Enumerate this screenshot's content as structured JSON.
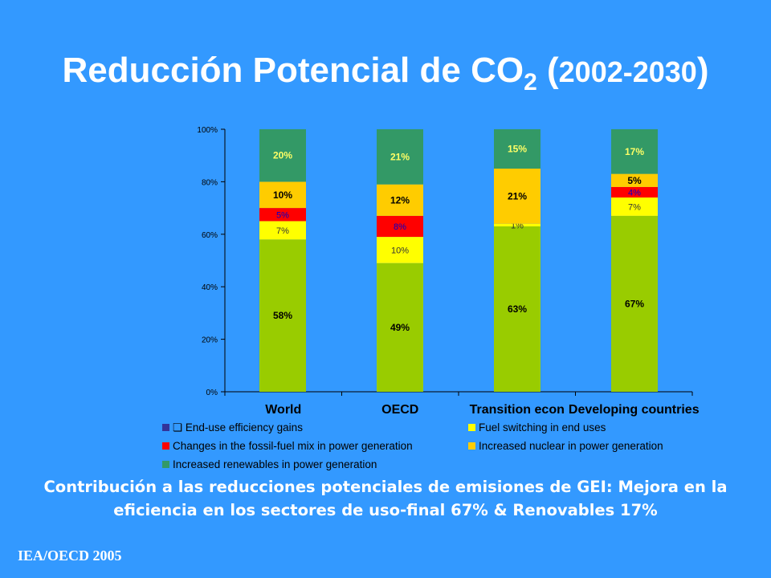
{
  "title": {
    "main": "Reducción Potencial de CO",
    "subscript": "2",
    "paren_open": " (",
    "years": "2002-2030",
    "paren_close": ")"
  },
  "caption": {
    "line1": "Contribución a las reducciones potenciales de emisiones de GEI: Mejora en la",
    "line2": "eficiencia en los sectores de uso-final 67%  & Renovables 17%"
  },
  "source": "IEA/OECD 2005",
  "colors": {
    "end_use_efficiency": "#99cc00",
    "fuel_switching": "#ffff00",
    "fossil_fuel_mix": "#ff0000",
    "nuclear": "#ffcc00",
    "renewables": "#339966",
    "legend_end_use_marker": "#333399",
    "background": "#3399ff",
    "plot_area": "#3399ff"
  },
  "chart_data": {
    "type": "bar",
    "stacked": true,
    "percent_stacked": true,
    "categories": [
      "World",
      "OECD",
      "Transition econ",
      "Developing countries"
    ],
    "ylim": [
      0,
      100
    ],
    "y_ticks": [
      "0%",
      "20%",
      "40%",
      "60%",
      "80%",
      "100%"
    ],
    "grid": false,
    "legend_position": "bottom",
    "series": [
      {
        "name": "❏ End-use efficiency gains",
        "color_key": "end_use_efficiency",
        "legend_color_key": "legend_end_use_marker",
        "values": [
          58,
          49,
          63,
          67
        ],
        "labels": [
          "58%",
          "49%",
          "63%",
          "67%"
        ]
      },
      {
        "name": "Fuel switching in end uses",
        "color_key": "fuel_switching",
        "values": [
          7,
          10,
          1,
          7
        ],
        "labels": [
          "7%",
          "10%",
          "1%",
          "7%"
        ]
      },
      {
        "name": "Changes in the fossil-fuel mix in power generation",
        "color_key": "fossil_fuel_mix",
        "values": [
          5,
          8,
          0,
          4
        ],
        "labels": [
          "5%",
          "8%",
          "",
          "4%"
        ]
      },
      {
        "name": "Increased nuclear in power generation",
        "color_key": "nuclear",
        "values": [
          10,
          12,
          21,
          5
        ],
        "labels": [
          "10%",
          "12%",
          "21%",
          "5%"
        ]
      },
      {
        "name": "Increased renewables in power generation",
        "color_key": "renewables",
        "values": [
          20,
          21,
          15,
          17
        ],
        "labels": [
          "20%",
          "21%",
          "15%",
          "17%"
        ]
      }
    ]
  }
}
